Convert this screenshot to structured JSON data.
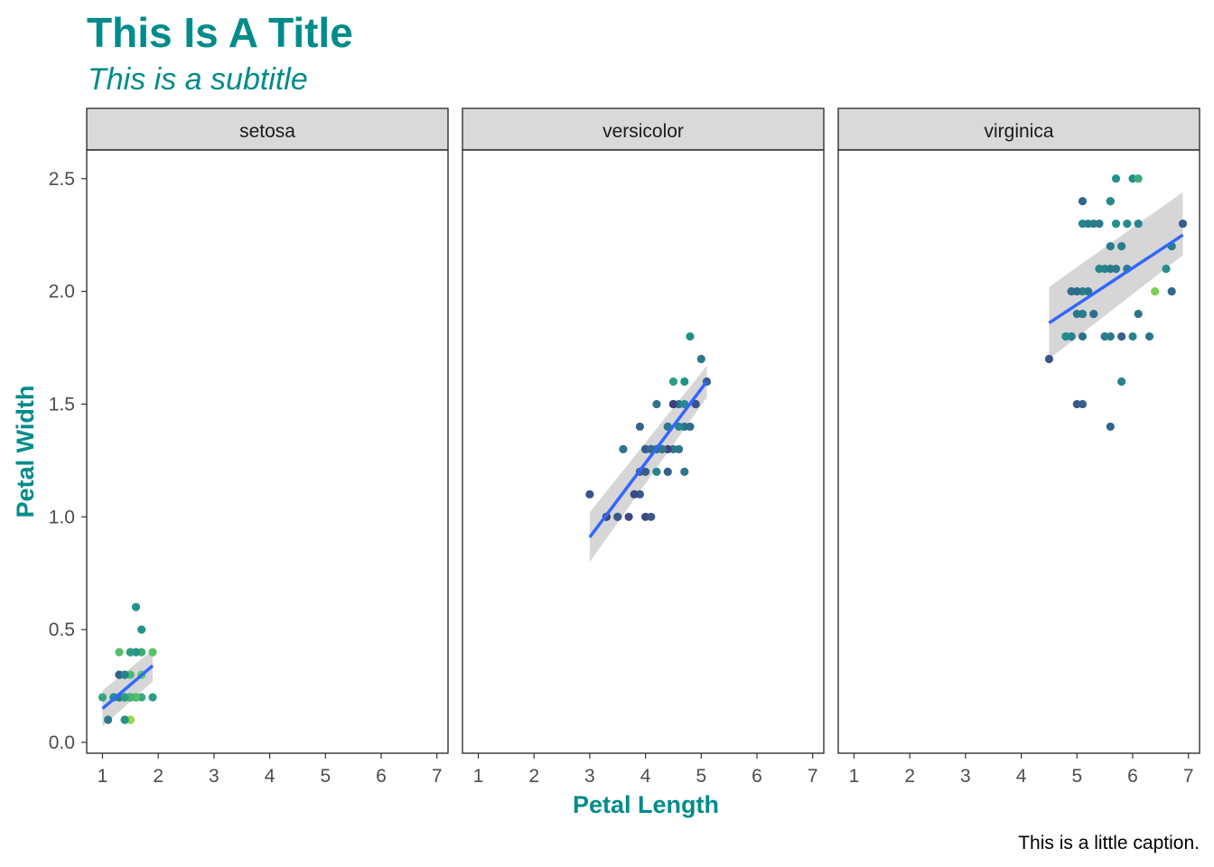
{
  "chart_data": {
    "type": "scatter",
    "title": "This Is A Title",
    "subtitle": "This is a subtitle",
    "xlabel": "Petal Length",
    "ylabel": "Petal Width",
    "caption": "This is a little caption.",
    "xlim": [
      1,
      7
    ],
    "ylim": [
      0,
      2.5
    ],
    "x_ticks": [
      1,
      2,
      3,
      4,
      5,
      6,
      7
    ],
    "y_ticks": [
      0.0,
      0.5,
      1.0,
      1.5,
      2.0,
      2.5
    ],
    "y_tick_labels": [
      "0.0",
      "0.5",
      "1.0",
      "1.5",
      "2.0",
      "2.5"
    ],
    "grid": false,
    "legend": "none",
    "colors": {
      "title": "#008B8B",
      "smooth_line": "#3366FF",
      "confidence_band": "#999999",
      "strip_fill": "#D9D9D9",
      "point_palette": "viridis"
    },
    "panels": [
      {
        "name": "setosa",
        "points": [
          {
            "x": 1.4,
            "y": 0.2,
            "c": 0.55
          },
          {
            "x": 1.4,
            "y": 0.2,
            "c": 0.45
          },
          {
            "x": 1.3,
            "y": 0.2,
            "c": 0.5
          },
          {
            "x": 1.5,
            "y": 0.2,
            "c": 0.48
          },
          {
            "x": 1.4,
            "y": 0.2,
            "c": 0.6
          },
          {
            "x": 1.7,
            "y": 0.4,
            "c": 0.62
          },
          {
            "x": 1.4,
            "y": 0.3,
            "c": 0.5
          },
          {
            "x": 1.5,
            "y": 0.2,
            "c": 0.55
          },
          {
            "x": 1.4,
            "y": 0.2,
            "c": 0.4
          },
          {
            "x": 1.5,
            "y": 0.1,
            "c": 0.45
          },
          {
            "x": 1.5,
            "y": 0.2,
            "c": 0.62
          },
          {
            "x": 1.6,
            "y": 0.2,
            "c": 0.5
          },
          {
            "x": 1.4,
            "y": 0.1,
            "c": 0.48
          },
          {
            "x": 1.1,
            "y": 0.1,
            "c": 0.4
          },
          {
            "x": 1.2,
            "y": 0.2,
            "c": 0.72
          },
          {
            "x": 1.5,
            "y": 0.4,
            "c": 0.8
          },
          {
            "x": 1.3,
            "y": 0.4,
            "c": 0.7
          },
          {
            "x": 1.4,
            "y": 0.3,
            "c": 0.55
          },
          {
            "x": 1.7,
            "y": 0.3,
            "c": 0.75
          },
          {
            "x": 1.5,
            "y": 0.3,
            "c": 0.68
          },
          {
            "x": 1.7,
            "y": 0.2,
            "c": 0.6
          },
          {
            "x": 1.5,
            "y": 0.4,
            "c": 0.65
          },
          {
            "x": 1.0,
            "y": 0.2,
            "c": 0.58
          },
          {
            "x": 1.7,
            "y": 0.5,
            "c": 0.52
          },
          {
            "x": 1.9,
            "y": 0.2,
            "c": 0.55
          },
          {
            "x": 1.6,
            "y": 0.2,
            "c": 0.5
          },
          {
            "x": 1.6,
            "y": 0.4,
            "c": 0.52
          },
          {
            "x": 1.5,
            "y": 0.2,
            "c": 0.58
          },
          {
            "x": 1.4,
            "y": 0.2,
            "c": 0.52
          },
          {
            "x": 1.6,
            "y": 0.2,
            "c": 0.45
          },
          {
            "x": 1.6,
            "y": 0.2,
            "c": 0.46
          },
          {
            "x": 1.5,
            "y": 0.4,
            "c": 0.55
          },
          {
            "x": 1.5,
            "y": 0.1,
            "c": 0.85
          },
          {
            "x": 1.4,
            "y": 0.2,
            "c": 0.88
          },
          {
            "x": 1.5,
            "y": 0.2,
            "c": 0.48
          },
          {
            "x": 1.2,
            "y": 0.2,
            "c": 0.5
          },
          {
            "x": 1.3,
            "y": 0.2,
            "c": 0.6
          },
          {
            "x": 1.4,
            "y": 0.1,
            "c": 0.52
          },
          {
            "x": 1.3,
            "y": 0.2,
            "c": 0.42
          },
          {
            "x": 1.5,
            "y": 0.2,
            "c": 0.55
          },
          {
            "x": 1.3,
            "y": 0.3,
            "c": 0.5
          },
          {
            "x": 1.3,
            "y": 0.3,
            "c": 0.3
          },
          {
            "x": 1.3,
            "y": 0.2,
            "c": 0.42
          },
          {
            "x": 1.6,
            "y": 0.6,
            "c": 0.5
          },
          {
            "x": 1.9,
            "y": 0.4,
            "c": 0.72
          },
          {
            "x": 1.4,
            "y": 0.3,
            "c": 0.45
          },
          {
            "x": 1.6,
            "y": 0.2,
            "c": 0.7
          },
          {
            "x": 1.4,
            "y": 0.2,
            "c": 0.42
          },
          {
            "x": 1.5,
            "y": 0.2,
            "c": 0.65
          },
          {
            "x": 1.4,
            "y": 0.2,
            "c": 0.55
          }
        ],
        "smooth": {
          "x": [
            1.0,
            1.9
          ],
          "y": [
            0.15,
            0.34
          ],
          "band_lower": [
            0.07,
            0.27
          ],
          "band_upper": [
            0.23,
            0.41
          ]
        }
      },
      {
        "name": "versicolor",
        "points": [
          {
            "x": 4.7,
            "y": 1.4,
            "c": 0.48
          },
          {
            "x": 4.5,
            "y": 1.5,
            "c": 0.42
          },
          {
            "x": 4.9,
            "y": 1.5,
            "c": 0.45
          },
          {
            "x": 4.0,
            "y": 1.3,
            "c": 0.3
          },
          {
            "x": 4.6,
            "y": 1.5,
            "c": 0.4
          },
          {
            "x": 4.5,
            "y": 1.3,
            "c": 0.4
          },
          {
            "x": 4.7,
            "y": 1.6,
            "c": 0.5
          },
          {
            "x": 3.3,
            "y": 1.0,
            "c": 0.25
          },
          {
            "x": 4.6,
            "y": 1.3,
            "c": 0.38
          },
          {
            "x": 3.9,
            "y": 1.4,
            "c": 0.32
          },
          {
            "x": 3.5,
            "y": 1.0,
            "c": 0.2
          },
          {
            "x": 4.2,
            "y": 1.5,
            "c": 0.38
          },
          {
            "x": 4.0,
            "y": 1.0,
            "c": 0.22
          },
          {
            "x": 4.7,
            "y": 1.4,
            "c": 0.38
          },
          {
            "x": 3.6,
            "y": 1.3,
            "c": 0.38
          },
          {
            "x": 4.4,
            "y": 1.4,
            "c": 0.45
          },
          {
            "x": 4.5,
            "y": 1.5,
            "c": 0.42
          },
          {
            "x": 4.1,
            "y": 1.0,
            "c": 0.28
          },
          {
            "x": 4.5,
            "y": 1.5,
            "c": 0.18
          },
          {
            "x": 3.9,
            "y": 1.1,
            "c": 0.28
          },
          {
            "x": 4.8,
            "y": 1.8,
            "c": 0.5
          },
          {
            "x": 4.0,
            "y": 1.3,
            "c": 0.4
          },
          {
            "x": 4.9,
            "y": 1.5,
            "c": 0.25
          },
          {
            "x": 4.7,
            "y": 1.2,
            "c": 0.4
          },
          {
            "x": 4.3,
            "y": 1.3,
            "c": 0.4
          },
          {
            "x": 4.4,
            "y": 1.4,
            "c": 0.4
          },
          {
            "x": 4.8,
            "y": 1.4,
            "c": 0.35
          },
          {
            "x": 5.0,
            "y": 1.7,
            "c": 0.4
          },
          {
            "x": 4.5,
            "y": 1.5,
            "c": 0.38
          },
          {
            "x": 3.5,
            "y": 1.0,
            "c": 0.28
          },
          {
            "x": 3.8,
            "y": 1.1,
            "c": 0.22
          },
          {
            "x": 3.7,
            "y": 1.0,
            "c": 0.22
          },
          {
            "x": 3.9,
            "y": 1.2,
            "c": 0.3
          },
          {
            "x": 5.1,
            "y": 1.6,
            "c": 0.28
          },
          {
            "x": 4.5,
            "y": 1.5,
            "c": 0.2
          },
          {
            "x": 4.5,
            "y": 1.6,
            "c": 0.55
          },
          {
            "x": 4.7,
            "y": 1.5,
            "c": 0.48
          },
          {
            "x": 4.4,
            "y": 1.3,
            "c": 0.2
          },
          {
            "x": 4.1,
            "y": 1.3,
            "c": 0.4
          },
          {
            "x": 4.0,
            "y": 1.3,
            "c": 0.28
          },
          {
            "x": 4.4,
            "y": 1.2,
            "c": 0.3
          },
          {
            "x": 4.6,
            "y": 1.4,
            "c": 0.45
          },
          {
            "x": 4.0,
            "y": 1.2,
            "c": 0.3
          },
          {
            "x": 3.3,
            "y": 1.0,
            "c": 0.22
          },
          {
            "x": 4.2,
            "y": 1.3,
            "c": 0.32
          },
          {
            "x": 4.2,
            "y": 1.2,
            "c": 0.45
          },
          {
            "x": 4.2,
            "y": 1.3,
            "c": 0.38
          },
          {
            "x": 4.3,
            "y": 1.3,
            "c": 0.4
          },
          {
            "x": 3.0,
            "y": 1.1,
            "c": 0.25
          },
          {
            "x": 4.1,
            "y": 1.3,
            "c": 0.35
          }
        ],
        "smooth": {
          "x": [
            3.0,
            5.1
          ],
          "y": [
            0.91,
            1.6
          ],
          "band_lower": [
            0.8,
            1.53
          ],
          "band_upper": [
            1.02,
            1.67
          ]
        }
      },
      {
        "name": "virginica",
        "points": [
          {
            "x": 6.0,
            "y": 2.5,
            "c": 0.48
          },
          {
            "x": 5.1,
            "y": 1.9,
            "c": 0.35
          },
          {
            "x": 5.9,
            "y": 2.1,
            "c": 0.42
          },
          {
            "x": 5.6,
            "y": 1.8,
            "c": 0.4
          },
          {
            "x": 5.8,
            "y": 2.2,
            "c": 0.42
          },
          {
            "x": 6.6,
            "y": 2.1,
            "c": 0.48
          },
          {
            "x": 4.5,
            "y": 1.7,
            "c": 0.25
          },
          {
            "x": 6.3,
            "y": 1.8,
            "c": 0.4
          },
          {
            "x": 5.8,
            "y": 1.8,
            "c": 0.3
          },
          {
            "x": 6.1,
            "y": 2.5,
            "c": 0.62
          },
          {
            "x": 5.1,
            "y": 2.0,
            "c": 0.45
          },
          {
            "x": 5.3,
            "y": 1.9,
            "c": 0.35
          },
          {
            "x": 5.5,
            "y": 2.1,
            "c": 0.45
          },
          {
            "x": 5.0,
            "y": 2.0,
            "c": 0.35
          },
          {
            "x": 5.1,
            "y": 2.4,
            "c": 0.32
          },
          {
            "x": 5.3,
            "y": 2.3,
            "c": 0.42
          },
          {
            "x": 5.5,
            "y": 1.8,
            "c": 0.48
          },
          {
            "x": 6.7,
            "y": 2.2,
            "c": 0.42
          },
          {
            "x": 6.9,
            "y": 2.3,
            "c": 0.3
          },
          {
            "x": 5.0,
            "y": 1.5,
            "c": 0.28
          },
          {
            "x": 5.7,
            "y": 2.3,
            "c": 0.5
          },
          {
            "x": 4.9,
            "y": 2.0,
            "c": 0.35
          },
          {
            "x": 6.7,
            "y": 2.0,
            "c": 0.35
          },
          {
            "x": 4.9,
            "y": 1.8,
            "c": 0.45
          },
          {
            "x": 5.7,
            "y": 2.1,
            "c": 0.42
          },
          {
            "x": 6.0,
            "y": 1.8,
            "c": 0.45
          },
          {
            "x": 4.8,
            "y": 1.8,
            "c": 0.4
          },
          {
            "x": 4.9,
            "y": 1.8,
            "c": 0.45
          },
          {
            "x": 5.6,
            "y": 2.1,
            "c": 0.4
          },
          {
            "x": 5.8,
            "y": 1.6,
            "c": 0.45
          },
          {
            "x": 6.1,
            "y": 1.9,
            "c": 0.4
          },
          {
            "x": 6.4,
            "y": 2.0,
            "c": 0.8
          },
          {
            "x": 5.6,
            "y": 2.2,
            "c": 0.42
          },
          {
            "x": 5.1,
            "y": 1.5,
            "c": 0.3
          },
          {
            "x": 5.6,
            "y": 1.4,
            "c": 0.32
          },
          {
            "x": 6.1,
            "y": 2.3,
            "c": 0.45
          },
          {
            "x": 5.6,
            "y": 2.4,
            "c": 0.45
          },
          {
            "x": 5.5,
            "y": 1.8,
            "c": 0.42
          },
          {
            "x": 4.8,
            "y": 1.8,
            "c": 0.48
          },
          {
            "x": 5.4,
            "y": 2.1,
            "c": 0.45
          },
          {
            "x": 5.6,
            "y": 2.4,
            "c": 0.48
          },
          {
            "x": 5.1,
            "y": 2.3,
            "c": 0.45
          },
          {
            "x": 5.1,
            "y": 1.9,
            "c": 0.42
          },
          {
            "x": 5.9,
            "y": 2.3,
            "c": 0.48
          },
          {
            "x": 5.7,
            "y": 2.5,
            "c": 0.5
          },
          {
            "x": 5.2,
            "y": 2.3,
            "c": 0.42
          },
          {
            "x": 5.0,
            "y": 1.9,
            "c": 0.4
          },
          {
            "x": 5.2,
            "y": 2.0,
            "c": 0.4
          },
          {
            "x": 5.4,
            "y": 2.3,
            "c": 0.4
          },
          {
            "x": 5.1,
            "y": 1.8,
            "c": 0.38
          }
        ],
        "smooth": {
          "x": [
            4.5,
            6.9
          ],
          "y": [
            1.86,
            2.25
          ],
          "band_lower": [
            1.7,
            2.16
          ],
          "band_upper": [
            2.02,
            2.44
          ]
        }
      }
    ]
  }
}
